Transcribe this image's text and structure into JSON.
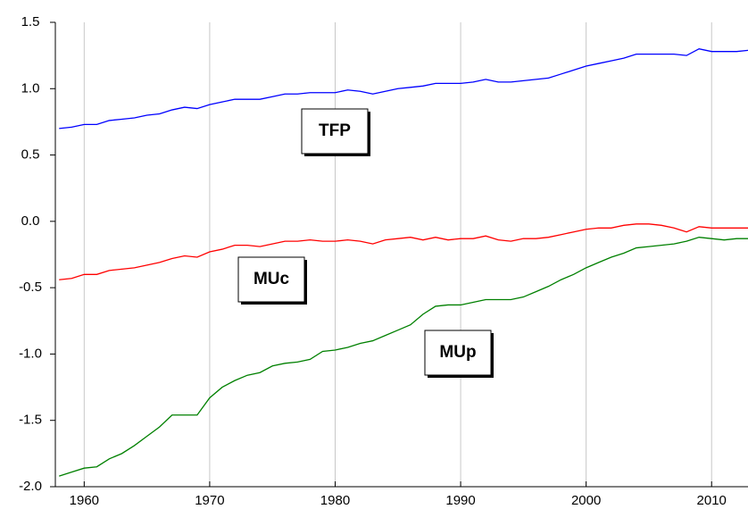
{
  "chart_data": {
    "type": "line",
    "x": [
      1958,
      1959,
      1960,
      1961,
      1962,
      1963,
      1964,
      1965,
      1966,
      1967,
      1968,
      1969,
      1970,
      1971,
      1972,
      1973,
      1974,
      1975,
      1976,
      1977,
      1978,
      1979,
      1980,
      1981,
      1982,
      1983,
      1984,
      1985,
      1986,
      1987,
      1988,
      1989,
      1990,
      1991,
      1992,
      1993,
      1994,
      1995,
      1996,
      1997,
      1998,
      1999,
      2000,
      2001,
      2002,
      2003,
      2004,
      2005,
      2006,
      2007,
      2008,
      2009,
      2010,
      2011,
      2012,
      2013
    ],
    "series": [
      {
        "name": "TFP",
        "color": "#0000ff",
        "values": [
          0.7,
          0.71,
          0.73,
          0.73,
          0.76,
          0.77,
          0.78,
          0.8,
          0.81,
          0.84,
          0.86,
          0.85,
          0.88,
          0.9,
          0.92,
          0.92,
          0.92,
          0.94,
          0.96,
          0.96,
          0.97,
          0.97,
          0.97,
          0.99,
          0.98,
          0.96,
          0.98,
          1.0,
          1.01,
          1.02,
          1.04,
          1.04,
          1.04,
          1.05,
          1.07,
          1.05,
          1.05,
          1.06,
          1.07,
          1.08,
          1.11,
          1.14,
          1.17,
          1.19,
          1.21,
          1.23,
          1.26,
          1.26,
          1.26,
          1.26,
          1.25,
          1.3,
          1.28,
          1.28,
          1.28,
          1.29
        ]
      },
      {
        "name": "MUc",
        "color": "#ff0000",
        "values": [
          -0.44,
          -0.43,
          -0.4,
          -0.4,
          -0.37,
          -0.36,
          -0.35,
          -0.33,
          -0.31,
          -0.28,
          -0.26,
          -0.27,
          -0.23,
          -0.21,
          -0.18,
          -0.18,
          -0.19,
          -0.17,
          -0.15,
          -0.15,
          -0.14,
          -0.15,
          -0.15,
          -0.14,
          -0.15,
          -0.17,
          -0.14,
          -0.13,
          -0.12,
          -0.14,
          -0.12,
          -0.14,
          -0.13,
          -0.13,
          -0.11,
          -0.14,
          -0.15,
          -0.13,
          -0.13,
          -0.12,
          -0.1,
          -0.08,
          -0.06,
          -0.05,
          -0.05,
          -0.03,
          -0.02,
          -0.02,
          -0.03,
          -0.05,
          -0.08,
          -0.04,
          -0.05,
          -0.05,
          -0.05,
          -0.05
        ]
      },
      {
        "name": "MUp",
        "color": "#008000",
        "values": [
          -1.92,
          -1.89,
          -1.86,
          -1.85,
          -1.79,
          -1.75,
          -1.69,
          -1.62,
          -1.55,
          -1.46,
          -1.46,
          -1.46,
          -1.33,
          -1.25,
          -1.2,
          -1.16,
          -1.14,
          -1.09,
          -1.07,
          -1.06,
          -1.04,
          -0.98,
          -0.97,
          -0.95,
          -0.92,
          -0.9,
          -0.86,
          -0.82,
          -0.78,
          -0.7,
          -0.64,
          -0.63,
          -0.63,
          -0.61,
          -0.59,
          -0.59,
          -0.59,
          -0.57,
          -0.53,
          -0.49,
          -0.44,
          -0.4,
          -0.35,
          -0.31,
          -0.27,
          -0.24,
          -0.2,
          -0.19,
          -0.18,
          -0.17,
          -0.15,
          -0.12,
          -0.13,
          -0.14,
          -0.13,
          -0.13
        ]
      }
    ],
    "xlim": [
      1957.7,
      2012.9
    ],
    "xticks": [
      1960,
      1970,
      1980,
      1990,
      2000,
      2010
    ],
    "ylim": [
      -2.0,
      1.5
    ],
    "yticks": [
      1.5,
      {
        "value": 1.0,
        "label": "1.0"
      },
      0.5,
      {
        "value": 0.0,
        "label": "0.0"
      },
      -0.5,
      {
        "value": -1.0,
        "label": "-1.0"
      },
      -1.5,
      {
        "value": -2.0,
        "label": "-2.0"
      }
    ],
    "grid": "x"
  }
}
